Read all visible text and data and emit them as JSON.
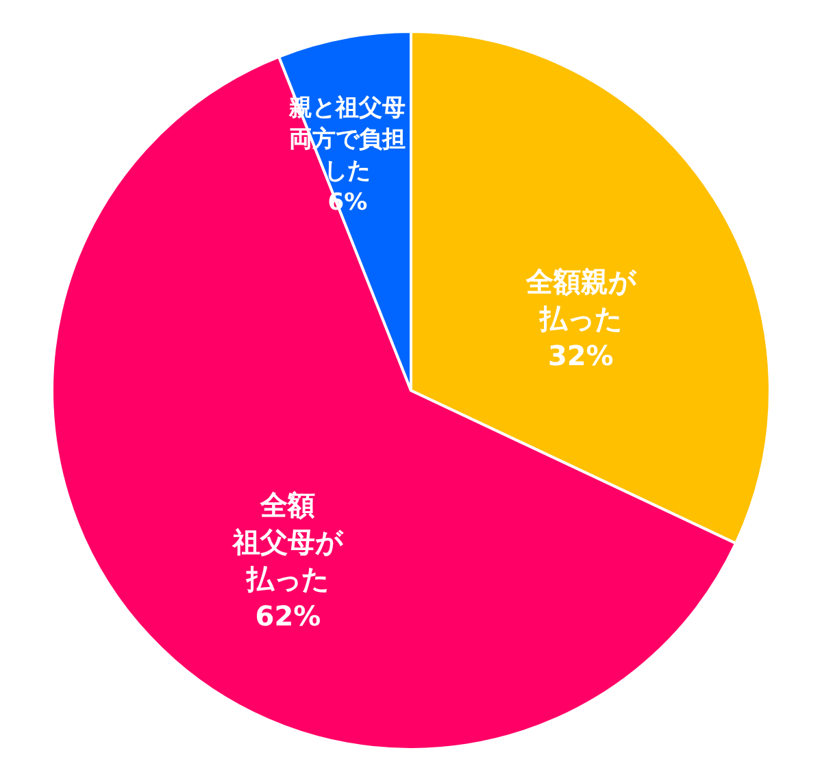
{
  "chart_data": {
    "type": "pie",
    "categories": [
      "全額親が払った",
      "全額祖父母が払った",
      "親と祖父母両方で負担した"
    ],
    "values": [
      32,
      62,
      6
    ],
    "value_labels": [
      "32%",
      "62%",
      "6%"
    ],
    "colors": [
      "#ffc000",
      "#ff0066",
      "#0066ff"
    ]
  }
}
